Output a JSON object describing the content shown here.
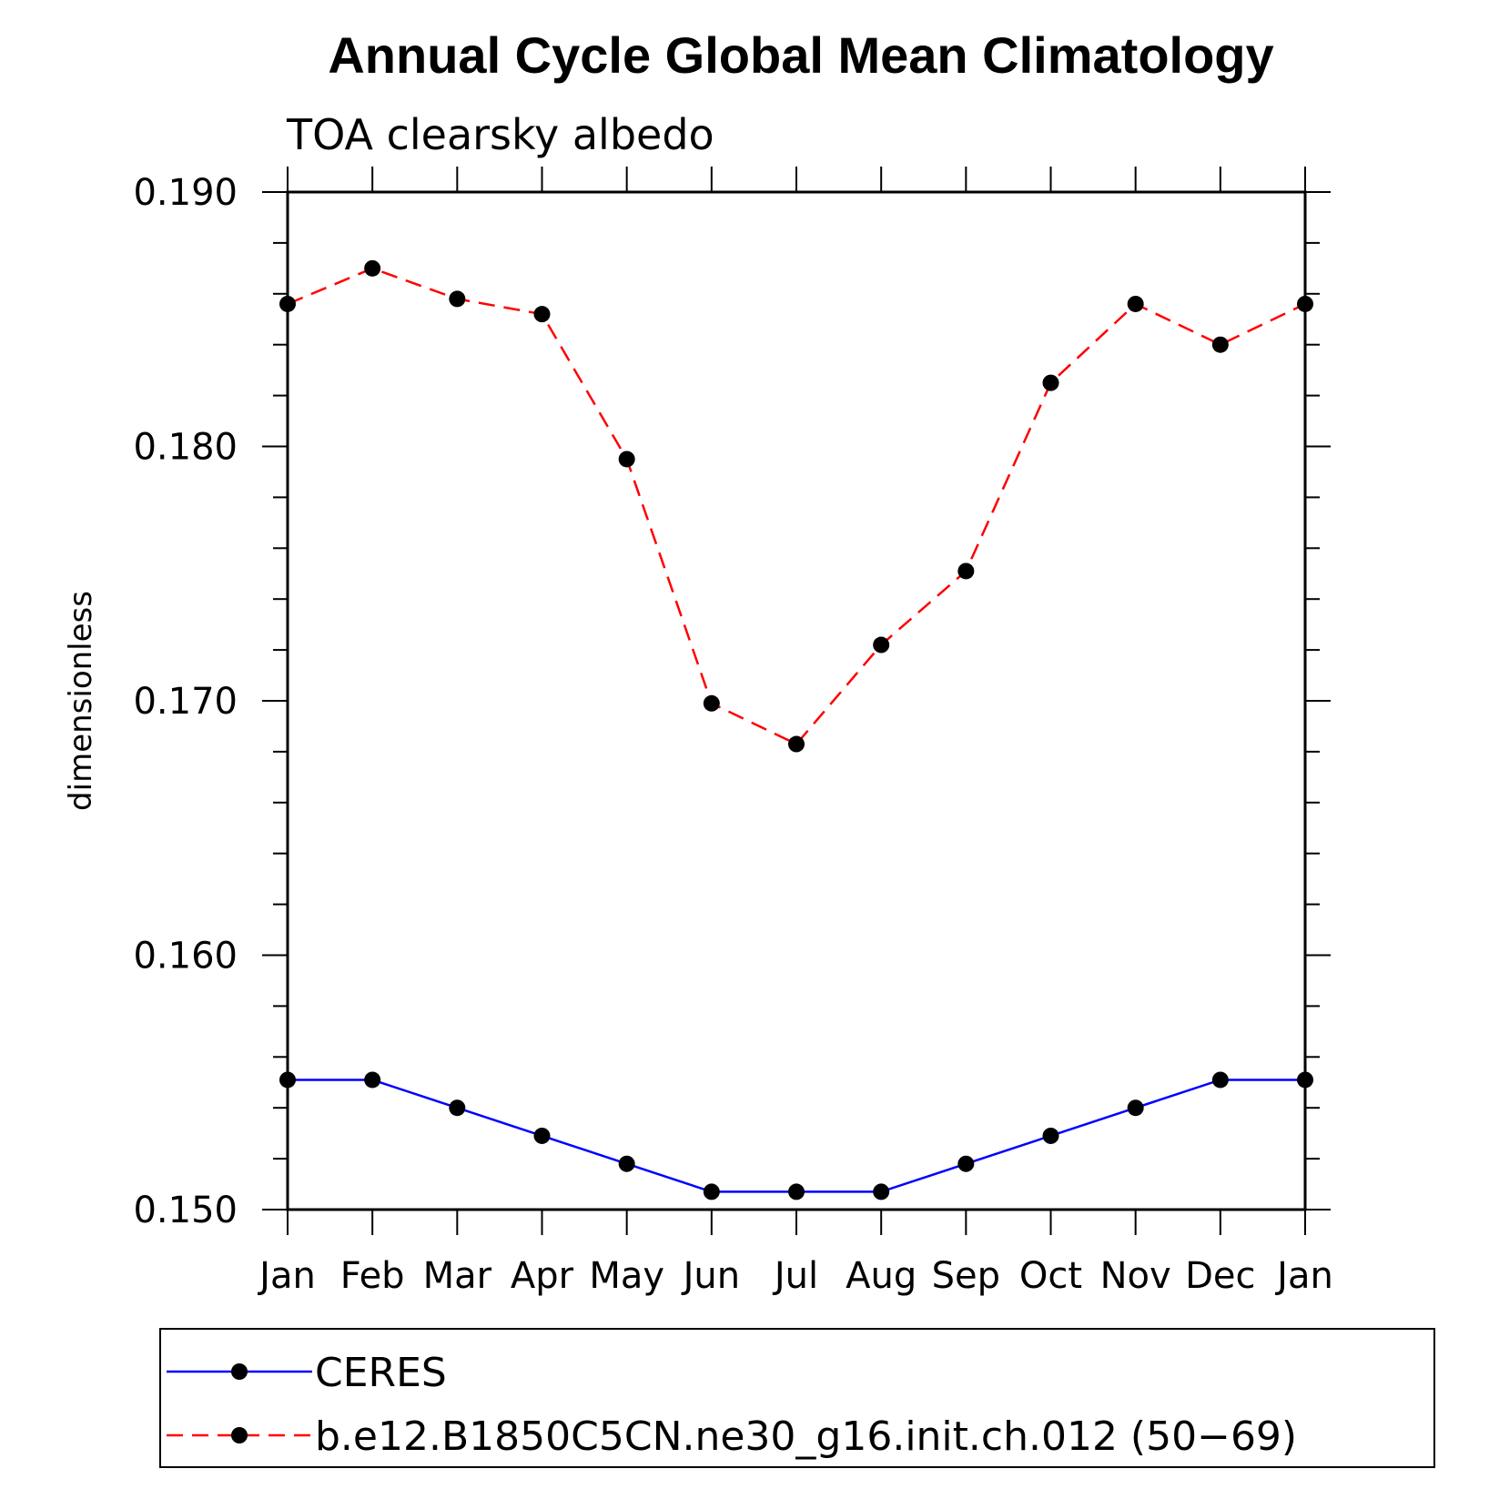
{
  "chart_data": {
    "type": "line",
    "title": "Annual Cycle Global Mean Climatology",
    "subtitle": "TOA clearsky albedo",
    "xlabel": "",
    "ylabel": "dimensionless",
    "categories": [
      "Jan",
      "Feb",
      "Mar",
      "Apr",
      "May",
      "Jun",
      "Jul",
      "Aug",
      "Sep",
      "Oct",
      "Nov",
      "Dec",
      "Jan"
    ],
    "ylim": [
      0.15,
      0.19
    ],
    "yticks": [
      "0.150",
      "0.160",
      "0.170",
      "0.180",
      "0.190"
    ],
    "grid": false,
    "legend_position": "bottom",
    "series": [
      {
        "name": "CERES",
        "color": "#0000ff",
        "dash": "solid",
        "marker": "filled-circle",
        "values": [
          0.1551,
          0.1551,
          0.154,
          0.1529,
          0.1518,
          0.1507,
          0.1507,
          0.1507,
          0.1518,
          0.1529,
          0.154,
          0.1551,
          0.1551
        ]
      },
      {
        "name": "b.e12.B1850C5CN.ne30_g16.init.ch.012 (50−69)",
        "color": "#ff0000",
        "dash": "dashed",
        "marker": "filled-circle",
        "values": [
          0.1856,
          0.187,
          0.1858,
          0.1852,
          0.1795,
          0.1699,
          0.1683,
          0.1722,
          0.1751,
          0.1825,
          0.1856,
          0.184,
          0.1856
        ]
      }
    ]
  }
}
